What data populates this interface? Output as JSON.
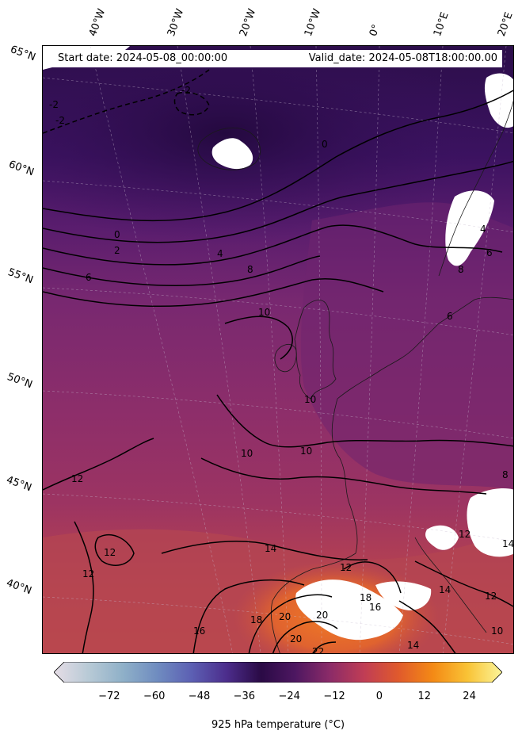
{
  "header": {
    "start_date": "Start date: 2024-05-08_00:00:00",
    "valid_date": "Valid_date: 2024-05-08T18:00:00.00"
  },
  "longitude_labels": [
    "40°W",
    "30°W",
    "20°W",
    "10°W",
    "0°",
    "10°E",
    "20°E"
  ],
  "latitude_labels": [
    "65°N",
    "60°N",
    "55°N",
    "50°N",
    "45°N",
    "40°N"
  ],
  "contour_labels": [
    "-2",
    "-2",
    "-2",
    "0",
    "0",
    "2",
    "4",
    "6",
    "8",
    "8",
    "10",
    "10",
    "10",
    "10",
    "12",
    "12",
    "12",
    "12",
    "12",
    "14",
    "14",
    "14",
    "14",
    "16",
    "16",
    "18",
    "18",
    "20",
    "20",
    "20",
    "22",
    "4",
    "6",
    "6",
    "8",
    "10",
    "12"
  ],
  "colorbar": {
    "ticks": [
      "−72",
      "−60",
      "−48",
      "−36",
      "−24",
      "−12",
      "0",
      "12",
      "24"
    ],
    "tick_values": [
      -72,
      -60,
      -48,
      -36,
      -24,
      -12,
      0,
      12,
      24
    ],
    "range": [
      -84,
      30
    ],
    "label": "925 hPa temperature ($^\\circ$C)",
    "label_display": "925 hPa temperature (°C)",
    "colors": [
      "#e6dde6",
      "#b8cad6",
      "#8fb0c8",
      "#6f8cc0",
      "#5c5fb3",
      "#4c2d8c",
      "#2a0a45",
      "#4d1761",
      "#8b2b68",
      "#c03d55",
      "#e05a2c",
      "#f48a15",
      "#f9c336",
      "#fbf59a"
    ]
  },
  "map_colors": {
    "cold_north": "#2c0e4a",
    "mid_north": "#4a176a",
    "mid": "#6f2470",
    "warm_mid": "#8b2d6c",
    "warm": "#a83a5e",
    "hot": "#c84e48",
    "hotter": "#e06a30",
    "missing": "#ffffff"
  }
}
